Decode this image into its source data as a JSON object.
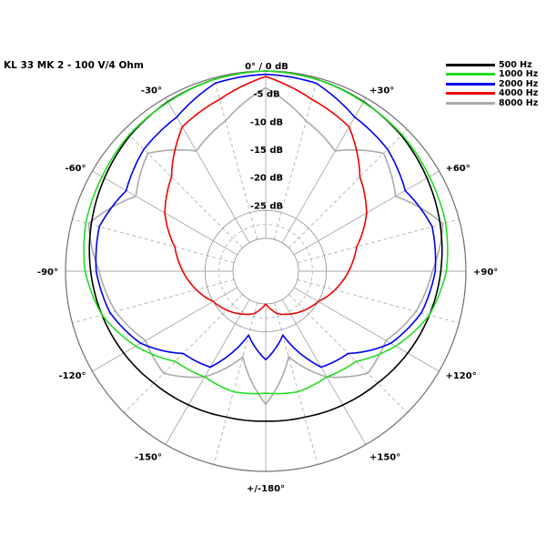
{
  "title": "KL 33 MK 2 - 100 V/4 Ohm",
  "chart_data": {
    "type": "polar",
    "title": "KL 33 MK 2 - 100 V/4 Ohm",
    "radial_unit": "dB",
    "radial_range": [
      -30,
      0
    ],
    "radial_ticks": [
      {
        "value": 0,
        "label": "0° / 0 dB"
      },
      {
        "value": -5,
        "label": "-5 dB"
      },
      {
        "value": -10,
        "label": "-10 dB"
      },
      {
        "value": -15,
        "label": "-15 dB"
      },
      {
        "value": -20,
        "label": "-20 dB"
      },
      {
        "value": -25,
        "label": "-25 dB"
      }
    ],
    "angle_labels": [
      {
        "angle": 30,
        "label": "+30°"
      },
      {
        "angle": 60,
        "label": "+60°"
      },
      {
        "angle": 90,
        "label": "+90°"
      },
      {
        "angle": 120,
        "label": "+120°"
      },
      {
        "angle": 150,
        "label": "+150°"
      },
      {
        "angle": 180,
        "label": "+/-180°"
      },
      {
        "angle": -150,
        "label": "-150°"
      },
      {
        "angle": -120,
        "label": "-120°"
      },
      {
        "angle": -90,
        "label": "-90°"
      },
      {
        "angle": -60,
        "label": "-60°"
      },
      {
        "angle": -30,
        "label": "-30°"
      }
    ],
    "angles": [
      0,
      15,
      30,
      45,
      60,
      75,
      90,
      105,
      120,
      135,
      150,
      165,
      180
    ],
    "symmetric": true,
    "series": [
      {
        "name": "500 Hz",
        "color": "#000000",
        "values": [
          0,
          -0.3,
          -0.8,
          -1.5,
          -2.5,
          -3.5,
          -4.5,
          -5.5,
          -6.5,
          -7.5,
          -8.2,
          -8.8,
          -9
        ]
      },
      {
        "name": "1000 Hz",
        "color": "#22dd22",
        "values": [
          0,
          -0.3,
          -0.9,
          -1.3,
          -2,
          -2.5,
          -3.5,
          -5.5,
          -9,
          -13,
          -14,
          -13.5,
          -14
        ]
      },
      {
        "name": "2000 Hz",
        "color": "#0000ee",
        "values": [
          -0.6,
          -1,
          -4,
          -5,
          -7,
          -5,
          -5.5,
          -7,
          -10,
          -15,
          -16,
          -24,
          -20
        ]
      },
      {
        "name": "4000 Hz",
        "color": "#ee0000",
        "values": [
          -1,
          -4,
          -6,
          -12,
          -15,
          -19,
          -21,
          -23,
          -25,
          -26,
          -27,
          -28,
          -30
        ]
      },
      {
        "name": "8000 Hz",
        "color": "#aaaaaa",
        "values": [
          -3,
          -8,
          -11,
          -6,
          -9,
          -3,
          -6,
          -8,
          -11,
          -10,
          -14,
          -20,
          -12
        ]
      }
    ]
  }
}
